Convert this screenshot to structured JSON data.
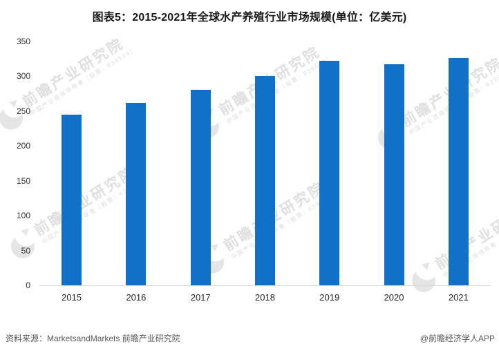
{
  "title": "图表5：2015-2021年全球水产养殖行业市场规模(单位：亿美元)",
  "chart_data": {
    "type": "bar",
    "categories": [
      "2015",
      "2016",
      "2017",
      "2018",
      "2019",
      "2020",
      "2021"
    ],
    "values": [
      245,
      262,
      281,
      300,
      322,
      317,
      326
    ],
    "title": "图表5：2015-2021年全球水产养殖行业市场规模(单位：亿美元)",
    "xlabel": "",
    "ylabel": "",
    "ylim": [
      0,
      350
    ],
    "yticks": [
      0,
      50,
      100,
      150,
      200,
      250,
      300,
      350
    ],
    "grid": false,
    "legend": false,
    "bar_color": "#1170C8"
  },
  "watermark": {
    "brand": "前瞻产业研究院",
    "sub": "中国产业咨询领导者（股票：839599）"
  },
  "footer": {
    "source": "资料来源：MarketsandMarkets 前瞻产业研究院",
    "credit": "@前瞻经济学人APP"
  },
  "colors": {
    "bar": "#1170C8",
    "axis_line": "#d9d9d9",
    "title_text": "#1a1a1a",
    "tick_text": "#333333",
    "footer_text": "#595959",
    "watermark": "#dcdcdc"
  }
}
